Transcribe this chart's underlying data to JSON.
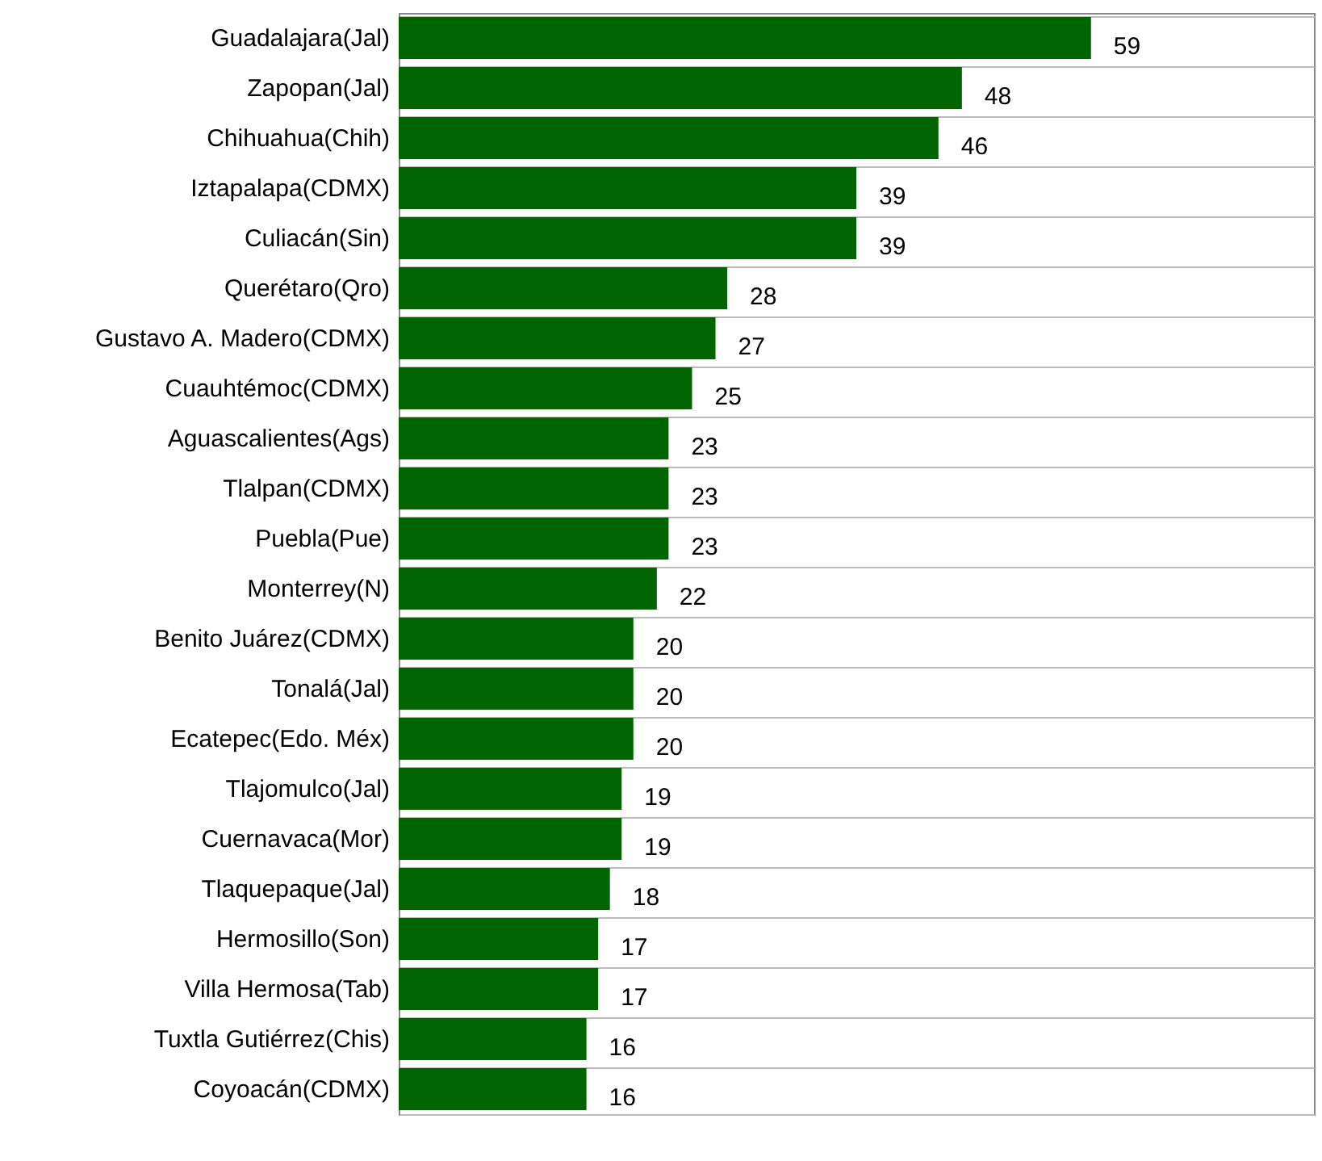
{
  "chart_data": {
    "type": "bar",
    "orientation": "horizontal",
    "categories": [
      "Guadalajara(Jal)",
      "Zapopan(Jal)",
      "Chihuahua(Chih)",
      "Iztapalapa(CDMX)",
      "Culiacán(Sin)",
      "Querétaro(Qro)",
      "Gustavo A. Madero(CDMX)",
      "Cuauhtémoc(CDMX)",
      "Aguascalientes(Ags)",
      "Tlalpan(CDMX)",
      "Puebla(Pue)",
      "Monterrey(N)",
      "Benito Juárez(CDMX)",
      "Tonalá(Jal)",
      "Ecatepec(Edo. Méx)",
      "Tlajomulco(Jal)",
      "Cuernavaca(Mor)",
      "Tlaquepaque(Jal)",
      "Hermosillo(Son)",
      "Villa Hermosa(Tab)",
      "Tuxtla Gutiérrez(Chis)",
      "Coyoacán(CDMX)"
    ],
    "values": [
      59,
      48,
      46,
      39,
      39,
      28,
      27,
      25,
      23,
      23,
      23,
      22,
      20,
      20,
      20,
      19,
      19,
      18,
      17,
      17,
      16,
      16
    ],
    "color": "#006400",
    "xlim": [
      0,
      78
    ],
    "tick_labels": "y",
    "grid": "y",
    "data_labels": true
  }
}
